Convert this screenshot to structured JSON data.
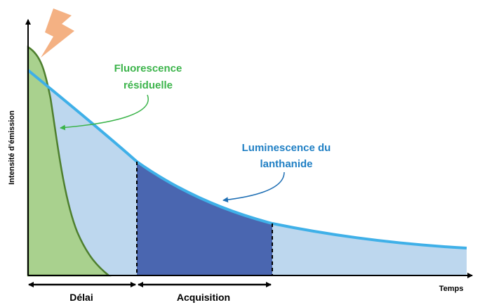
{
  "labels": {
    "fluorescence": [
      "Fluorescence",
      "résiduelle"
    ],
    "luminescence": [
      "Luminescence du",
      "lanthanide"
    ]
  },
  "axes": {
    "y_label": "Intensité d’émission",
    "x_label": "Temps"
  },
  "intervals": [
    "Délai",
    "Acquisition"
  ]
}
